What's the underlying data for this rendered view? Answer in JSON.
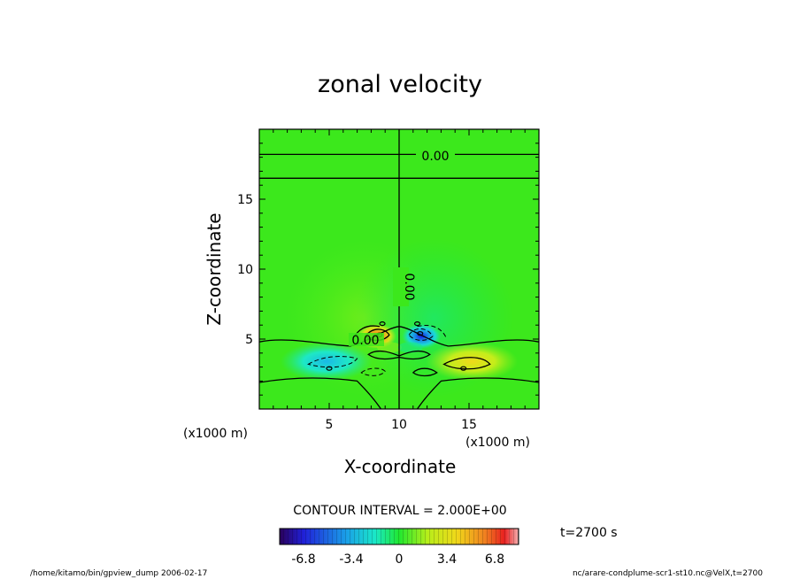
{
  "footer": {
    "left": "/home/kitamo/bin/gpview_dump  2006-02-17",
    "right": "nc/arare-condplume-scr1-st10.nc@VelX,t=2700"
  },
  "chart_data": {
    "type": "heatmap",
    "title": "zonal velocity",
    "xlabel": "X-coordinate",
    "ylabel": "Z-coordinate",
    "x_unit_label": "(x1000 m)",
    "y_unit_label": "(x1000 m)",
    "xlim": [
      0,
      20
    ],
    "ylim": [
      0,
      20
    ],
    "x_ticks": [
      5,
      10,
      15
    ],
    "y_ticks": [
      5,
      10,
      15
    ],
    "contour_interval_label": "CONTOUR INTERVAL = 2.000E+00",
    "contour_labels": [
      "0.00",
      "0.00",
      "0.00"
    ],
    "time_label": "t=2700 s",
    "colorbar": {
      "min": -8.5,
      "max": 8.5,
      "ticks": [
        -6.8,
        -3.4,
        0,
        3.4,
        6.8
      ],
      "tick_labels": [
        "-6.8",
        "-3.4",
        "0",
        "3.4",
        "6.8"
      ]
    },
    "background_value": 0.4,
    "features": [
      {
        "kind": "positive",
        "x": 8.5,
        "z": 5.3,
        "value": 7.5
      },
      {
        "kind": "negative",
        "x": 11.5,
        "z": 5.3,
        "value": -7.5
      },
      {
        "kind": "negative",
        "x": 5.0,
        "z": 3.3,
        "value": -3.5
      },
      {
        "kind": "positive",
        "x": 15.0,
        "z": 3.3,
        "value": 3.5
      }
    ],
    "legend": "none",
    "grid": false
  }
}
